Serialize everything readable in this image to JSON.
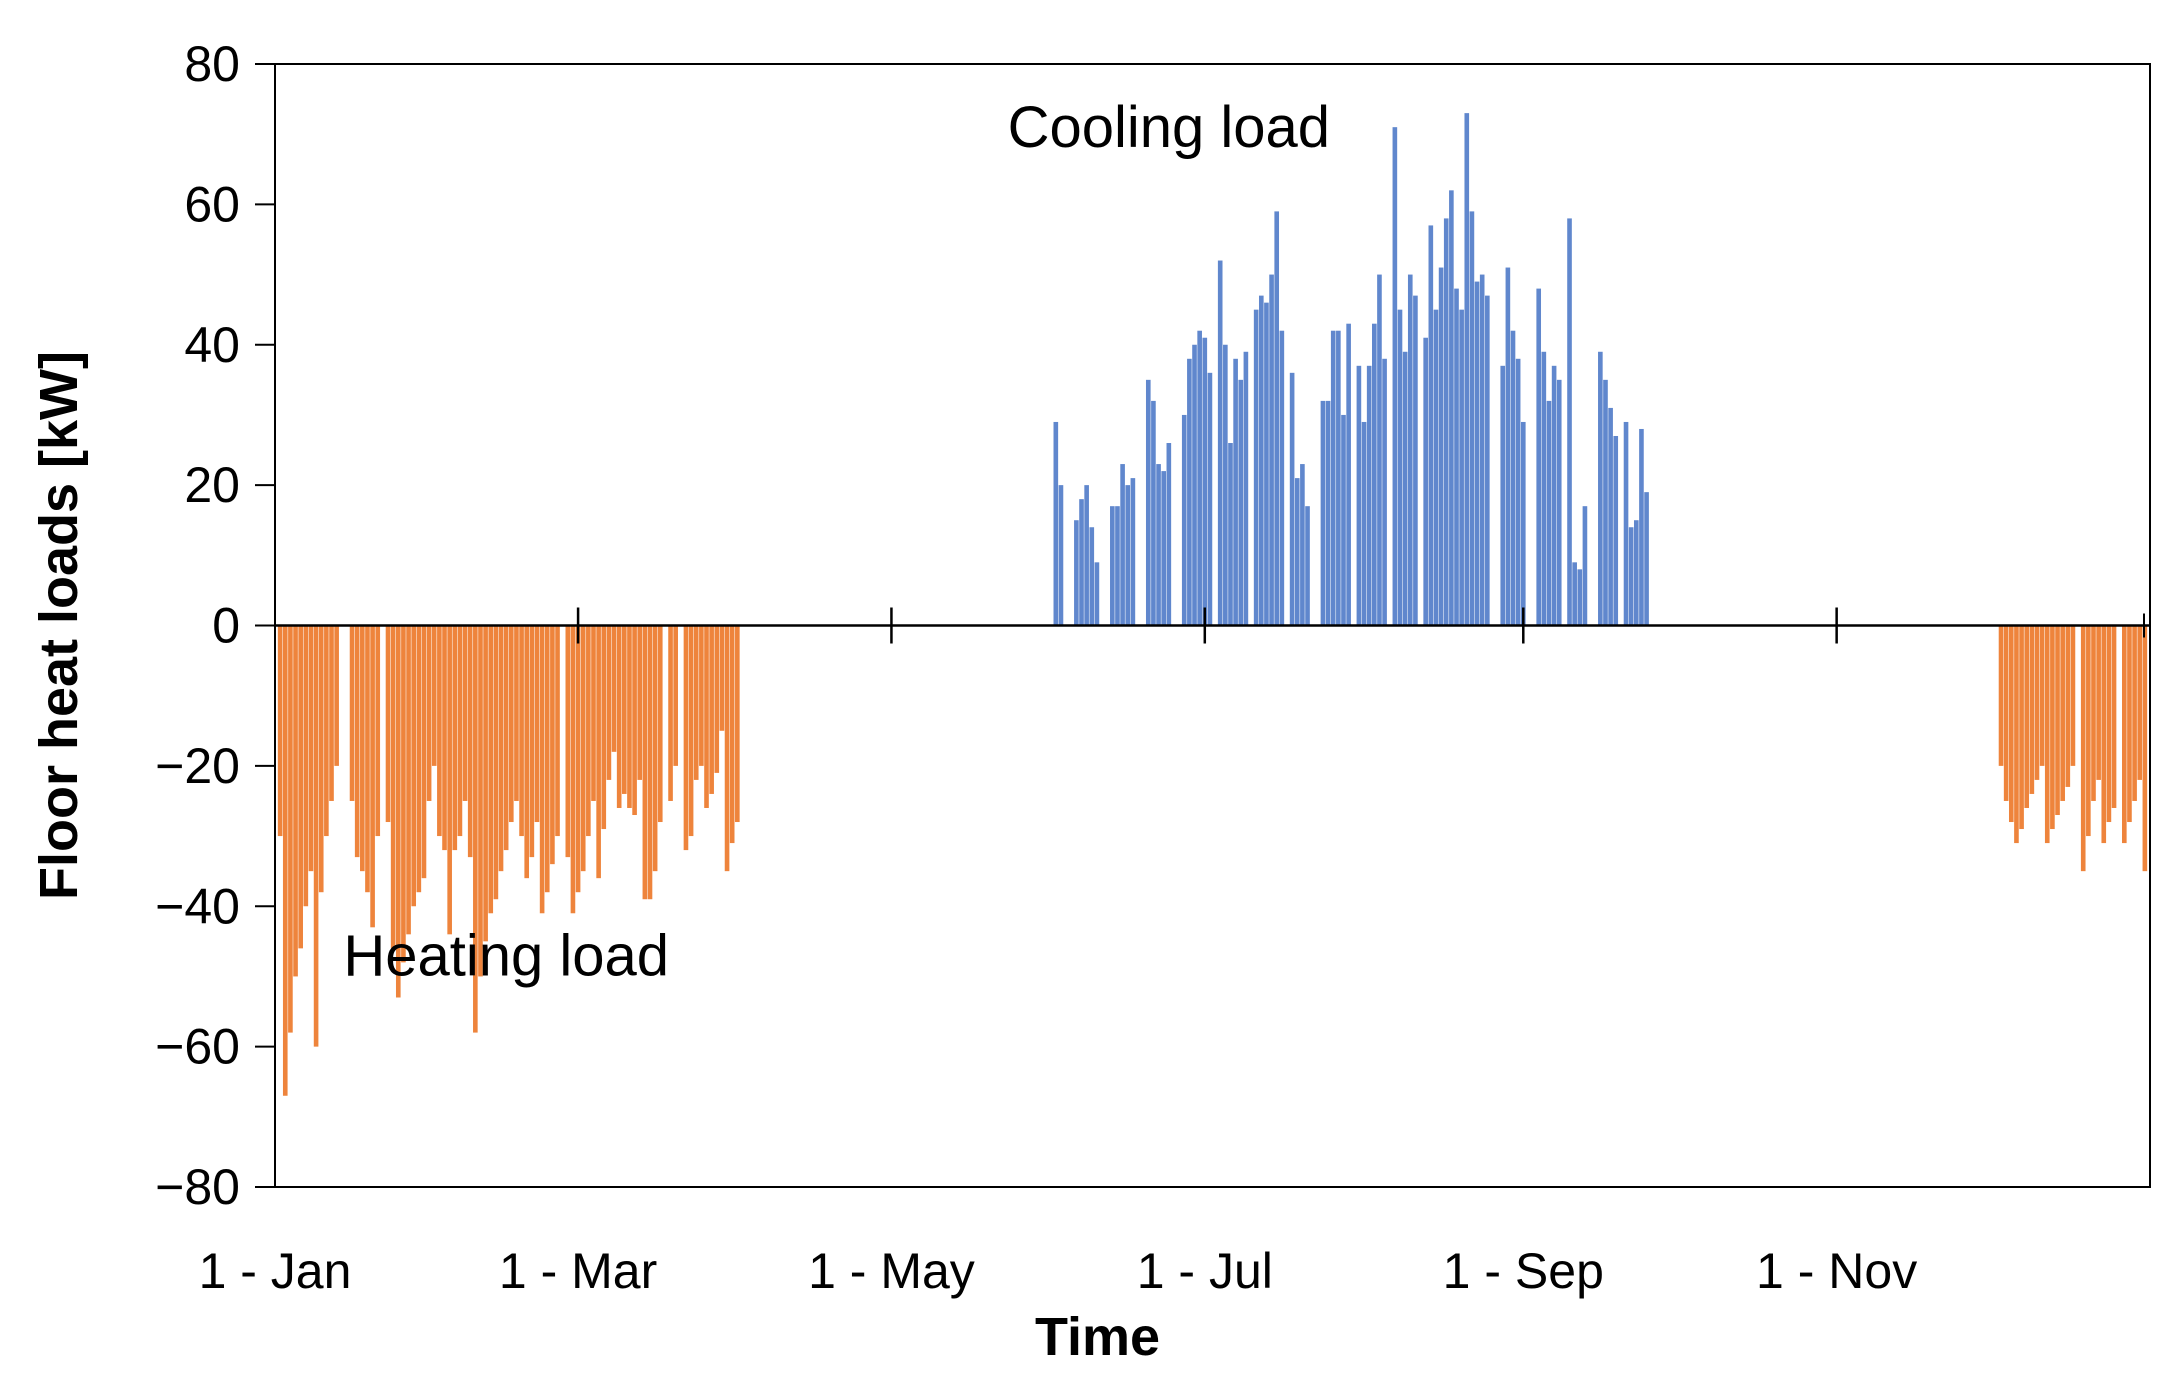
{
  "chart_data": {
    "type": "bar",
    "title": "",
    "xlabel": "Time",
    "ylabel": "Floor heat loads [kW]",
    "ylim": [
      -80,
      80
    ],
    "yticks": [
      80,
      60,
      40,
      20,
      0,
      -20,
      -40,
      -60,
      -80
    ],
    "ytick_labels": [
      "80",
      "60",
      "40",
      "20",
      "0",
      "−20",
      "−40",
      "−60",
      "−80"
    ],
    "xlim": [
      0,
      365
    ],
    "xticks": [
      {
        "day": 0,
        "label": "1 - Jan"
      },
      {
        "day": 59,
        "label": "1 - Mar"
      },
      {
        "day": 120,
        "label": "1 - May"
      },
      {
        "day": 181,
        "label": "1 - Jul"
      },
      {
        "day": 243,
        "label": "1 - Sep"
      },
      {
        "day": 304,
        "label": "1 - Nov"
      }
    ],
    "grid": false,
    "annotations": [
      {
        "text": "Cooling load",
        "x_day": 174,
        "y": 71
      },
      {
        "text": "Heating load",
        "x_day": 45,
        "y": -47
      }
    ],
    "colors": {
      "heating": "#ED7D31",
      "cooling": "#4472C4",
      "axis": "#000000"
    },
    "series": [
      {
        "name": "Heating load",
        "points": [
          [
            1,
            -30
          ],
          [
            2,
            -67
          ],
          [
            3,
            -58
          ],
          [
            4,
            -50
          ],
          [
            5,
            -46
          ],
          [
            6,
            -40
          ],
          [
            7,
            -35
          ],
          [
            8,
            -60
          ],
          [
            9,
            -38
          ],
          [
            10,
            -30
          ],
          [
            11,
            -25
          ],
          [
            12,
            -20
          ],
          [
            15,
            -25
          ],
          [
            16,
            -33
          ],
          [
            17,
            -35
          ],
          [
            18,
            -38
          ],
          [
            19,
            -43
          ],
          [
            20,
            -30
          ],
          [
            22,
            -28
          ],
          [
            23,
            -46
          ],
          [
            24,
            -53
          ],
          [
            25,
            -48
          ],
          [
            26,
            -44
          ],
          [
            27,
            -40
          ],
          [
            28,
            -38
          ],
          [
            29,
            -36
          ],
          [
            30,
            -25
          ],
          [
            31,
            -20
          ],
          [
            32,
            -30
          ],
          [
            33,
            -32
          ],
          [
            34,
            -44
          ],
          [
            35,
            -32
          ],
          [
            36,
            -30
          ],
          [
            37,
            -25
          ],
          [
            38,
            -33
          ],
          [
            39,
            -58
          ],
          [
            40,
            -50
          ],
          [
            41,
            -45
          ],
          [
            42,
            -41
          ],
          [
            43,
            -39
          ],
          [
            44,
            -35
          ],
          [
            45,
            -32
          ],
          [
            46,
            -28
          ],
          [
            47,
            -25
          ],
          [
            48,
            -30
          ],
          [
            49,
            -36
          ],
          [
            50,
            -33
          ],
          [
            51,
            -28
          ],
          [
            52,
            -41
          ],
          [
            53,
            -38
          ],
          [
            54,
            -34
          ],
          [
            55,
            -30
          ],
          [
            57,
            -33
          ],
          [
            58,
            -41
          ],
          [
            59,
            -38
          ],
          [
            60,
            -35
          ],
          [
            61,
            -30
          ],
          [
            62,
            -25
          ],
          [
            63,
            -36
          ],
          [
            64,
            -29
          ],
          [
            65,
            -22
          ],
          [
            66,
            -18
          ],
          [
            67,
            -26
          ],
          [
            68,
            -24
          ],
          [
            69,
            -26
          ],
          [
            70,
            -27
          ],
          [
            71,
            -22
          ],
          [
            72,
            -39
          ],
          [
            73,
            -39
          ],
          [
            74,
            -35
          ],
          [
            75,
            -28
          ],
          [
            77,
            -25
          ],
          [
            78,
            -20
          ],
          [
            80,
            -32
          ],
          [
            81,
            -30
          ],
          [
            82,
            -22
          ],
          [
            83,
            -20
          ],
          [
            84,
            -26
          ],
          [
            85,
            -24
          ],
          [
            86,
            -21
          ],
          [
            87,
            -15
          ],
          [
            88,
            -35
          ],
          [
            89,
            -31
          ],
          [
            90,
            -28
          ]
        ]
      },
      {
        "name": "Cooling load",
        "points": [
          [
            152,
            29
          ],
          [
            153,
            20
          ],
          [
            156,
            15
          ],
          [
            157,
            18
          ],
          [
            158,
            20
          ],
          [
            159,
            14
          ],
          [
            160,
            9
          ],
          [
            163,
            17
          ],
          [
            164,
            17
          ],
          [
            165,
            23
          ],
          [
            166,
            20
          ],
          [
            167,
            21
          ],
          [
            170,
            35
          ],
          [
            171,
            32
          ],
          [
            172,
            23
          ],
          [
            173,
            22
          ],
          [
            174,
            26
          ],
          [
            177,
            30
          ],
          [
            178,
            38
          ],
          [
            179,
            40
          ],
          [
            180,
            42
          ],
          [
            181,
            41
          ],
          [
            182,
            36
          ],
          [
            184,
            52
          ],
          [
            185,
            40
          ],
          [
            186,
            26
          ],
          [
            187,
            38
          ],
          [
            188,
            35
          ],
          [
            189,
            39
          ],
          [
            191,
            45
          ],
          [
            192,
            47
          ],
          [
            193,
            46
          ],
          [
            194,
            50
          ],
          [
            195,
            59
          ],
          [
            196,
            42
          ],
          [
            198,
            36
          ],
          [
            199,
            21
          ],
          [
            200,
            23
          ],
          [
            201,
            17
          ],
          [
            204,
            32
          ],
          [
            205,
            32
          ],
          [
            206,
            42
          ],
          [
            207,
            42
          ],
          [
            208,
            30
          ],
          [
            209,
            43
          ],
          [
            211,
            37
          ],
          [
            212,
            29
          ],
          [
            213,
            37
          ],
          [
            214,
            43
          ],
          [
            215,
            50
          ],
          [
            216,
            38
          ],
          [
            218,
            71
          ],
          [
            219,
            45
          ],
          [
            220,
            39
          ],
          [
            221,
            50
          ],
          [
            222,
            47
          ],
          [
            224,
            41
          ],
          [
            225,
            57
          ],
          [
            226,
            45
          ],
          [
            227,
            51
          ],
          [
            228,
            58
          ],
          [
            229,
            62
          ],
          [
            230,
            48
          ],
          [
            231,
            45
          ],
          [
            232,
            73
          ],
          [
            233,
            59
          ],
          [
            234,
            49
          ],
          [
            235,
            50
          ],
          [
            236,
            47
          ],
          [
            239,
            37
          ],
          [
            240,
            51
          ],
          [
            241,
            42
          ],
          [
            242,
            38
          ],
          [
            243,
            29
          ],
          [
            246,
            48
          ],
          [
            247,
            39
          ],
          [
            248,
            32
          ],
          [
            249,
            37
          ],
          [
            250,
            35
          ],
          [
            252,
            58
          ],
          [
            253,
            9
          ],
          [
            254,
            8
          ],
          [
            255,
            17
          ],
          [
            258,
            39
          ],
          [
            259,
            35
          ],
          [
            260,
            31
          ],
          [
            261,
            27
          ],
          [
            263,
            29
          ],
          [
            264,
            14
          ],
          [
            265,
            15
          ],
          [
            266,
            28
          ],
          [
            267,
            19
          ]
        ]
      },
      {
        "name": "Heating load (Dec)",
        "points": [
          [
            336,
            -20
          ],
          [
            337,
            -25
          ],
          [
            338,
            -28
          ],
          [
            339,
            -31
          ],
          [
            340,
            -29
          ],
          [
            341,
            -26
          ],
          [
            342,
            -24
          ],
          [
            343,
            -22
          ],
          [
            344,
            -20
          ],
          [
            345,
            -31
          ],
          [
            346,
            -29
          ],
          [
            347,
            -27
          ],
          [
            348,
            -25
          ],
          [
            349,
            -23
          ],
          [
            350,
            -20
          ],
          [
            352,
            -35
          ],
          [
            353,
            -30
          ],
          [
            354,
            -25
          ],
          [
            355,
            -22
          ],
          [
            356,
            -31
          ],
          [
            357,
            -28
          ],
          [
            358,
            -26
          ],
          [
            360,
            -31
          ],
          [
            361,
            -28
          ],
          [
            362,
            -25
          ],
          [
            363,
            -22
          ],
          [
            364,
            -35
          ]
        ]
      }
    ]
  }
}
